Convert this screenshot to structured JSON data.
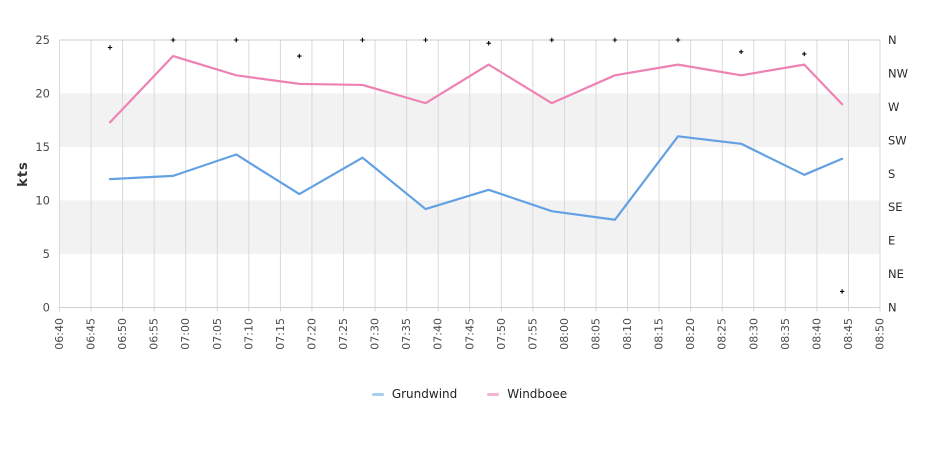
{
  "chart_data": {
    "type": "line",
    "title": "",
    "ylabel": "kts",
    "y_axis": {
      "min": 0,
      "max": 25,
      "ticks": [
        25,
        20,
        15,
        10,
        5,
        0
      ],
      "shaded_bands": [
        [
          5,
          10
        ],
        [
          15,
          20
        ]
      ]
    },
    "x_axis": {
      "start": "06:40",
      "end": "08:50",
      "tick_labels": [
        "06:40",
        "06:45",
        "06:50",
        "06:55",
        "07:00",
        "07:05",
        "07:10",
        "07:15",
        "07:20",
        "07:25",
        "07:30",
        "07:35",
        "07:40",
        "07:45",
        "07:50",
        "07:55",
        "08:00",
        "08:05",
        "08:10",
        "08:15",
        "08:20",
        "08:25",
        "08:30",
        "08:35",
        "08:40",
        "08:45",
        "08:50"
      ]
    },
    "right_axis": {
      "labels_top_to_bottom": [
        "N",
        "NW",
        "W",
        "SW",
        "S",
        "SE",
        "E",
        "NE",
        "N"
      ]
    },
    "sample_times": [
      "06:48",
      "06:58",
      "07:08",
      "07:18",
      "07:28",
      "07:38",
      "07:48",
      "07:58",
      "08:08",
      "08:18",
      "08:28",
      "08:38",
      "08:44"
    ],
    "series": [
      {
        "name": "Grundwind",
        "color": "#64a1e4",
        "values": [
          12.0,
          12.3,
          14.3,
          10.6,
          14.0,
          9.2,
          11.0,
          9.0,
          8.2,
          16.0,
          15.3,
          12.4,
          13.9
        ]
      },
      {
        "name": "Windboee",
        "color": "#ee82b4",
        "values": [
          17.3,
          23.5,
          21.7,
          20.9,
          20.8,
          19.1,
          22.7,
          19.1,
          21.7,
          22.7,
          21.7,
          22.7,
          19.0
        ]
      }
    ],
    "direction_dots": {
      "color": "#000000",
      "degrees": [
        350,
        360,
        360,
        338,
        360,
        360,
        356,
        360,
        360,
        360,
        344,
        341,
        22
      ],
      "axis_values": [
        24.3,
        25,
        25,
        23.5,
        25,
        25,
        24.7,
        25,
        25,
        25,
        23.9,
        23.7,
        1.5
      ]
    }
  },
  "legend": {
    "items": [
      {
        "label": "Grundwind",
        "color": "#a8cdf0"
      },
      {
        "label": "Windboee",
        "color": "#f5b4d4"
      }
    ]
  },
  "colors": {
    "band_fill": "#f2f2f2",
    "gridline": "#d9d9d9",
    "plot_border": "#cfcfcf",
    "marker": "#000000"
  }
}
